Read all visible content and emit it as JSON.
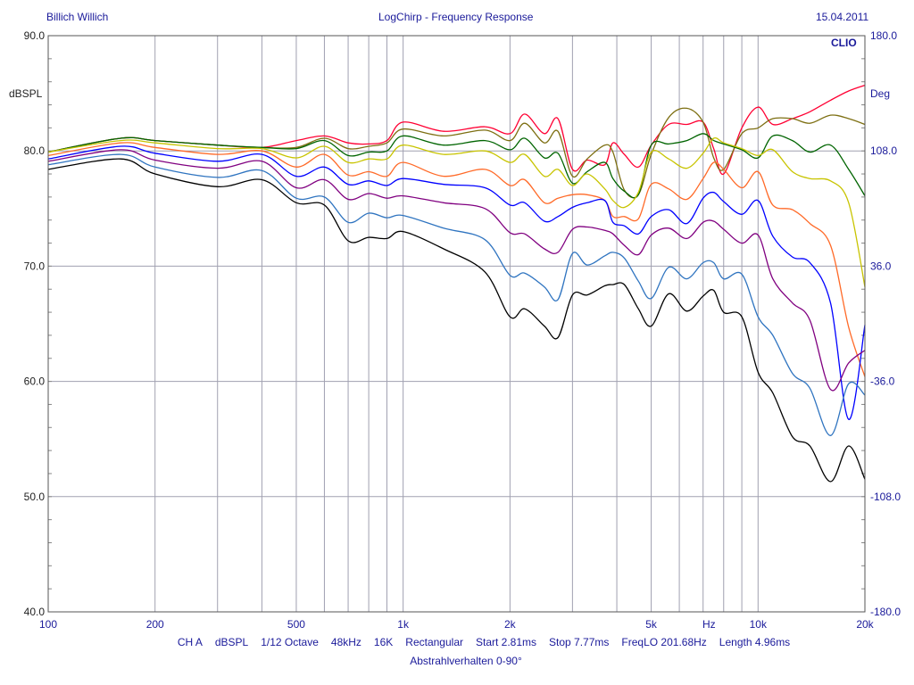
{
  "header": {
    "left": "Billich Willich",
    "title": "LogChirp - Frequency Response",
    "date": "15.04.2011"
  },
  "brand": "CLIO",
  "footer": {
    "items": [
      "CH A",
      "dBSPL",
      "1/12 Octave",
      "48kHz",
      "16K",
      "Rectangular",
      "Start 2.81ms",
      "Stop 7.77ms",
      "FreqLO 201.68Hz",
      "Length 4.96ms"
    ],
    "subtitle": "Abstrahlverhalten 0-90°"
  },
  "chart_data": {
    "type": "line",
    "title": "LogChirp - Frequency Response",
    "xlabel": "Hz",
    "ylabel": "dBSPL",
    "y2label": "Deg",
    "xscale": "log",
    "xlim": [
      100,
      20000
    ],
    "ylim": [
      40,
      90
    ],
    "y2lim": [
      -180,
      180
    ],
    "grid": true,
    "x_ticks": [
      {
        "value": 100,
        "label": "100"
      },
      {
        "value": 200,
        "label": "200"
      },
      {
        "value": 500,
        "label": "500"
      },
      {
        "value": 1000,
        "label": "1k"
      },
      {
        "value": 2000,
        "label": "2k"
      },
      {
        "value": 5000,
        "label": "5k"
      },
      {
        "value": 10000,
        "label": "10k"
      },
      {
        "value": 20000,
        "label": "20k"
      }
    ],
    "x_gridlines": [
      200,
      300,
      400,
      500,
      600,
      700,
      800,
      900,
      1000,
      2000,
      3000,
      4000,
      5000,
      6000,
      7000,
      8000,
      9000,
      10000
    ],
    "y_ticks": [
      {
        "value": 90,
        "label": "90.0"
      },
      {
        "value": 80,
        "label": "80.0"
      },
      {
        "value": 70,
        "label": "70.0"
      },
      {
        "value": 60,
        "label": "60.0"
      },
      {
        "value": 50,
        "label": "50.0"
      },
      {
        "value": 40,
        "label": "40.0"
      }
    ],
    "y2_ticks": [
      {
        "value": 180,
        "label": "180.0"
      },
      {
        "value": 108,
        "label": "108.0"
      },
      {
        "value": 36,
        "label": "36.0"
      },
      {
        "value": -36,
        "label": "-36.0"
      },
      {
        "value": -108,
        "label": "-108.0"
      },
      {
        "value": -180,
        "label": "-180.0"
      }
    ],
    "x": [
      100,
      160,
      200,
      300,
      400,
      500,
      600,
      700,
      800,
      900,
      1000,
      1300,
      1700,
      2000,
      2200,
      2500,
      2730,
      3000,
      3300,
      3700,
      3900,
      4200,
      4600,
      5000,
      5600,
      6300,
      7000,
      7500,
      8000,
      9000,
      10000,
      11000,
      12500,
      14000,
      16000,
      18000,
      20000
    ],
    "series": [
      {
        "color": "#ff0033",
        "values": [
          79.9,
          81.1,
          80.9,
          80.5,
          80.3,
          80.9,
          81.3,
          80.7,
          80.6,
          80.9,
          82.5,
          81.7,
          82.1,
          81.5,
          83.2,
          81.5,
          82.8,
          78.4,
          79.2,
          78.8,
          80.7,
          79.7,
          78.6,
          80.5,
          82.3,
          82.3,
          82.5,
          80.2,
          78.0,
          82.0,
          83.8,
          82.3,
          82.8,
          83.4,
          84.4,
          85.2,
          85.7
        ]
      },
      {
        "color": "#7d6f12",
        "values": [
          79.9,
          81.1,
          80.9,
          80.5,
          80.3,
          80.3,
          81.1,
          80.2,
          80.4,
          80.7,
          81.9,
          81.3,
          81.8,
          80.9,
          82.4,
          80.7,
          81.7,
          77.8,
          79.3,
          80.5,
          79.9,
          76.6,
          76.2,
          79.7,
          82.9,
          83.7,
          82.5,
          79.4,
          78.4,
          81.5,
          82.0,
          82.8,
          82.8,
          82.4,
          83.1,
          82.8,
          82.3
        ]
      },
      {
        "color": "#006400",
        "values": [
          79.9,
          81.1,
          80.9,
          80.5,
          80.3,
          80.2,
          80.9,
          79.6,
          79.9,
          80.0,
          81.3,
          80.5,
          80.9,
          80.1,
          81.1,
          79.4,
          79.8,
          77.2,
          78.2,
          79.0,
          77.6,
          76.5,
          76.2,
          80.5,
          80.6,
          80.9,
          81.5,
          80.9,
          80.6,
          80.1,
          79.4,
          81.3,
          80.9,
          79.9,
          80.5,
          78.4,
          76.1
        ]
      },
      {
        "color": "#c8c400",
        "values": [
          79.9,
          80.9,
          80.7,
          80.2,
          80.2,
          79.4,
          80.4,
          79.0,
          79.3,
          79.3,
          80.5,
          79.7,
          80.0,
          79.0,
          79.7,
          77.8,
          78.4,
          77.0,
          78.0,
          76.7,
          75.7,
          75.1,
          76.4,
          79.9,
          79.3,
          78.5,
          79.8,
          81.1,
          80.7,
          80.2,
          79.6,
          80.1,
          78.2,
          77.6,
          77.4,
          75.5,
          68.2
        ]
      },
      {
        "color": "#ff6a28",
        "values": [
          79.6,
          80.7,
          80.3,
          79.7,
          80.0,
          78.6,
          79.7,
          77.9,
          78.2,
          77.8,
          79.0,
          77.8,
          78.4,
          77.0,
          77.5,
          75.5,
          75.9,
          76.2,
          76.2,
          75.7,
          74.3,
          74.3,
          74.1,
          77.1,
          76.7,
          75.8,
          77.6,
          79.0,
          78.4,
          76.8,
          78.2,
          75.3,
          74.9,
          73.7,
          71.8,
          64.7,
          60.4
        ]
      },
      {
        "color": "#0000ff",
        "values": [
          79.3,
          80.4,
          79.8,
          79.1,
          79.7,
          77.8,
          78.6,
          77.1,
          77.4,
          77.0,
          77.6,
          77.1,
          76.8,
          75.3,
          75.5,
          73.9,
          74.3,
          75.1,
          75.5,
          75.7,
          73.8,
          73.5,
          72.8,
          74.3,
          74.9,
          73.7,
          75.9,
          76.4,
          75.6,
          74.5,
          75.7,
          72.6,
          70.8,
          70.3,
          66.8,
          56.7,
          64.9
        ]
      },
      {
        "color": "#800080",
        "values": [
          79.1,
          80.1,
          79.2,
          78.5,
          79.1,
          76.8,
          77.5,
          75.8,
          76.3,
          75.9,
          76.1,
          75.5,
          75.0,
          72.9,
          72.8,
          71.5,
          71.2,
          73.2,
          73.4,
          73.1,
          72.8,
          71.8,
          71.0,
          72.7,
          73.3,
          72.4,
          73.8,
          73.9,
          73.2,
          72.0,
          72.7,
          68.9,
          66.8,
          65.3,
          59.3,
          61.6,
          62.7
        ]
      },
      {
        "color": "#2f74c0",
        "values": [
          78.8,
          79.7,
          78.6,
          77.7,
          78.3,
          75.9,
          76.0,
          73.8,
          74.6,
          74.2,
          74.4,
          73.3,
          72.3,
          69.2,
          69.4,
          68.2,
          67.1,
          71.1,
          70.1,
          70.9,
          71.2,
          70.7,
          68.7,
          67.2,
          69.9,
          68.9,
          70.3,
          70.3,
          68.9,
          69.3,
          65.6,
          64.0,
          60.7,
          59.4,
          55.3,
          59.8,
          58.8
        ]
      },
      {
        "color": "#000000",
        "values": [
          78.4,
          79.3,
          78.0,
          76.9,
          77.5,
          75.5,
          75.3,
          72.2,
          72.5,
          72.4,
          73.0,
          71.5,
          69.5,
          65.6,
          66.3,
          64.8,
          63.8,
          67.5,
          67.5,
          68.3,
          68.4,
          68.4,
          66.3,
          64.8,
          67.6,
          66.1,
          67.4,
          67.9,
          66.0,
          65.6,
          60.8,
          59.0,
          55.2,
          54.4,
          51.3,
          54.4,
          51.5
        ]
      }
    ]
  }
}
